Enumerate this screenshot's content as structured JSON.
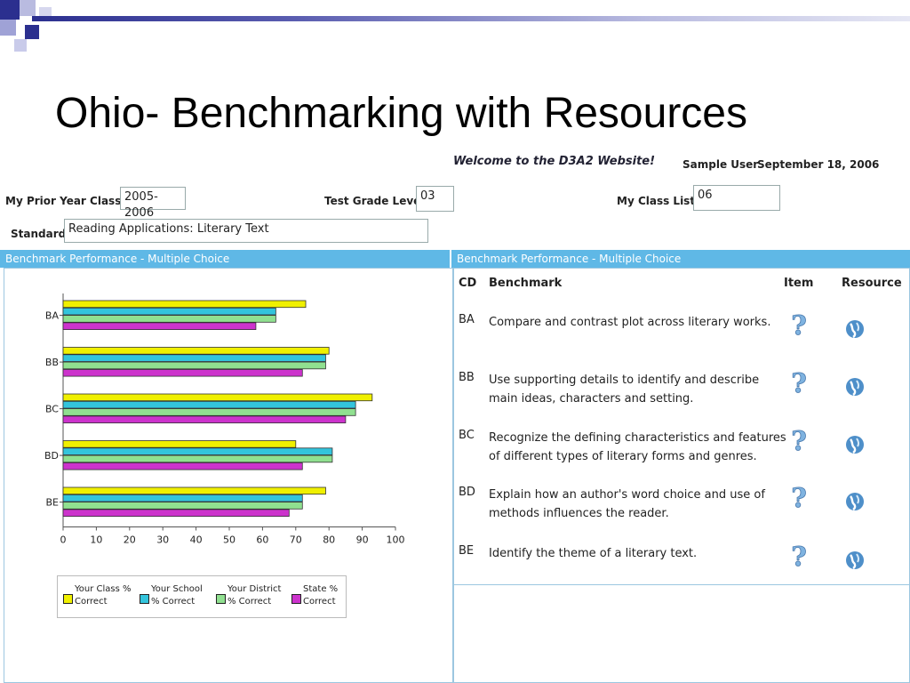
{
  "slide": {
    "title": "Ohio- Benchmarking with Resources"
  },
  "header": {
    "welcome": "Welcome to the D3A2 Website!",
    "user": "Sample User",
    "date": "September 18, 2006"
  },
  "form": {
    "prior_year_label": "My Prior Year Classes:",
    "prior_year_value": "2005-2006",
    "grade_label": "Test Grade Level:",
    "grade_value": "03",
    "class_lists_label": "My Class Lists:",
    "class_lists_value": "06",
    "standard_label": "Standard:",
    "standard_value": "Reading Applications: Literary Text"
  },
  "panels": {
    "left_title": "Benchmark Performance - Multiple Choice",
    "right_title": "Benchmark Performance - Multiple Choice"
  },
  "table": {
    "headers": {
      "cd": "CD",
      "benchmark": "Benchmark",
      "item": "Item",
      "resource": "Resource"
    },
    "rows": [
      {
        "cd": "BA",
        "benchmark": "Compare and contrast plot across literary works.",
        "item_icon": "question-mark-icon",
        "resource_icon": "resource-globe-icon"
      },
      {
        "cd": "BB",
        "benchmark": "Use supporting details to identify and describe main ideas, characters and setting.",
        "item_icon": "question-mark-icon",
        "resource_icon": "resource-globe-icon"
      },
      {
        "cd": "BC",
        "benchmark": "Recognize the defining characteristics and features of different types of literary forms and genres.",
        "item_icon": "question-mark-icon",
        "resource_icon": "resource-globe-icon"
      },
      {
        "cd": "BD",
        "benchmark": "Explain how an author's word choice and use of methods influences the reader.",
        "item_icon": "question-mark-icon",
        "resource_icon": "resource-globe-icon"
      },
      {
        "cd": "BE",
        "benchmark": "Identify the theme of a literary text.",
        "item_icon": "question-mark-icon",
        "resource_icon": "resource-globe-icon"
      }
    ]
  },
  "colors": {
    "band": "#5fb8e6",
    "class": "#f0f000",
    "school": "#33c4dc",
    "district": "#90e090",
    "state": "#cc33cc"
  },
  "chart_data": {
    "type": "bar",
    "orientation": "horizontal",
    "categories": [
      "BA",
      "BB",
      "BC",
      "BD",
      "BE"
    ],
    "series": [
      {
        "name": "Your Class % Correct",
        "values": [
          73,
          80,
          93,
          70,
          79
        ]
      },
      {
        "name": "Your School % Correct",
        "values": [
          64,
          79,
          88,
          81,
          72
        ]
      },
      {
        "name": "Your District % Correct",
        "values": [
          64,
          79,
          88,
          81,
          72
        ]
      },
      {
        "name": "State % Correct",
        "values": [
          58,
          72,
          85,
          72,
          68
        ]
      }
    ],
    "xlim": [
      0,
      100
    ],
    "xticks": [
      "0",
      "10",
      "20",
      "30",
      "40",
      "50",
      "60",
      "70",
      "80",
      "90",
      "100"
    ],
    "legend_position": "bottom"
  }
}
